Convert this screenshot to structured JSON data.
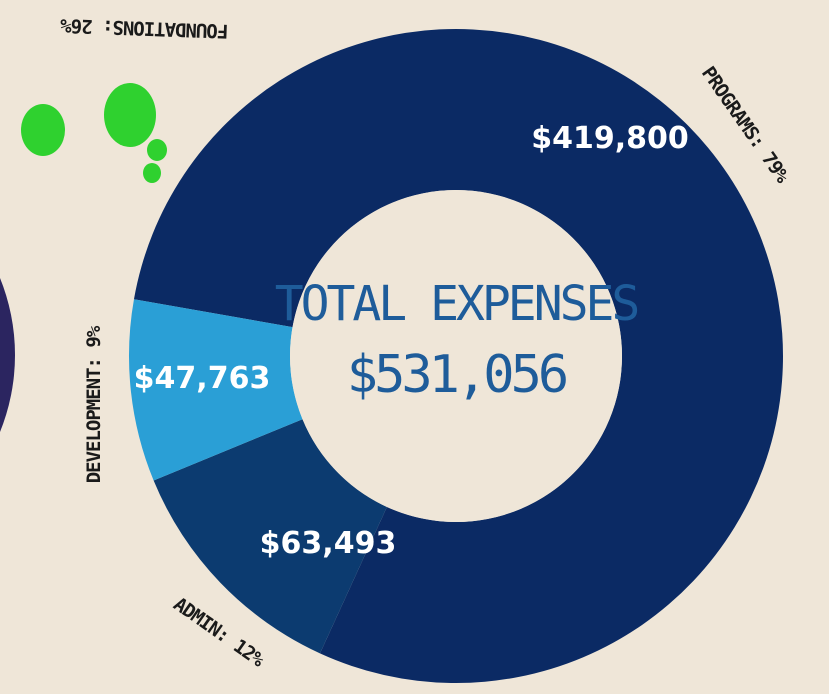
{
  "chart_data": {
    "type": "donut",
    "center_title": "TOTAL EXPENSES",
    "center_value": "$531,056",
    "other_label": "FOUNDATIONS: 26%",
    "categories": [
      "PROGRAMS: 79%",
      "ADMIN: 12%",
      "DEVELOPMENT: 9%"
    ],
    "values": [
      419800,
      63493,
      47763
    ],
    "value_labels": [
      "$419,800",
      "$63,493",
      "$47,763"
    ],
    "colors": [
      "#0b2a64",
      "#0c3b70",
      "#2a9fd6"
    ]
  }
}
